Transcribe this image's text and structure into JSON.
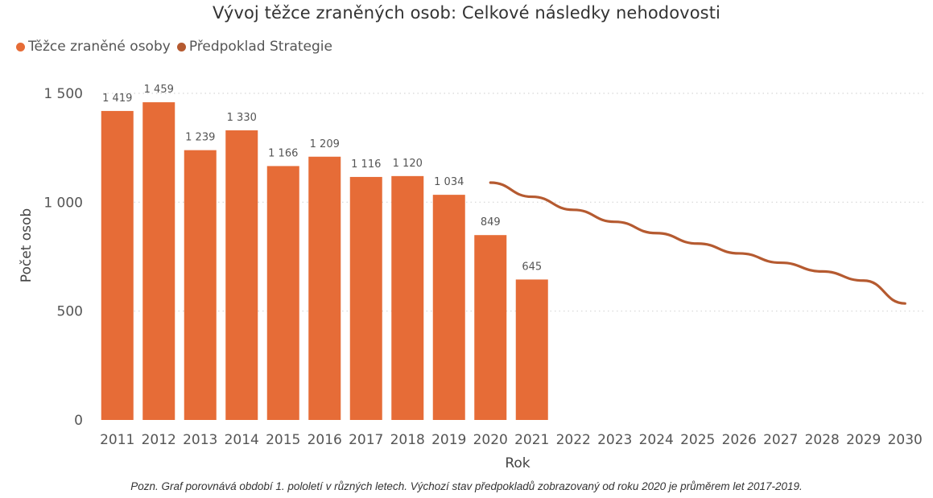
{
  "chart_data": {
    "type": "bar",
    "title": "Vývoj těžce zraněných osob: Celkové následky nehodovosti",
    "xlabel": "Rok",
    "ylabel": "Počet osob",
    "ylim": [
      0,
      1500
    ],
    "yticks": [
      0,
      500,
      1000,
      1500
    ],
    "ytick_labels": [
      "0",
      "500",
      "1 000",
      "1 500"
    ],
    "grid": true,
    "legend_position": "top-left",
    "categories": [
      "2011",
      "2012",
      "2013",
      "2014",
      "2015",
      "2016",
      "2017",
      "2018",
      "2019",
      "2020",
      "2021",
      "2022",
      "2023",
      "2024",
      "2025",
      "2026",
      "2027",
      "2028",
      "2029",
      "2030"
    ],
    "series": [
      {
        "name": "Těžce zraněné osoby",
        "type": "bar",
        "color": "#E66C37",
        "values": [
          1419,
          1459,
          1239,
          1330,
          1166,
          1209,
          1116,
          1120,
          1034,
          849,
          645,
          null,
          null,
          null,
          null,
          null,
          null,
          null,
          null,
          null
        ],
        "labels": [
          "1 419",
          "1 459",
          "1 239",
          "1 330",
          "1 166",
          "1 209",
          "1 116",
          "1 120",
          "1 034",
          "849",
          "645",
          "",
          "",
          "",
          "",
          "",
          "",
          "",
          "",
          ""
        ]
      },
      {
        "name": "Předpoklad Strategie",
        "type": "line",
        "color": "#B55A30",
        "values": [
          null,
          null,
          null,
          null,
          null,
          null,
          null,
          null,
          null,
          1090,
          1025,
          965,
          910,
          858,
          810,
          765,
          722,
          682,
          640,
          535
        ]
      }
    ]
  },
  "caption": "Pozn. Graf porovnává období 1. pololetí v různých letech. Výchozí stav předpokladů zobrazovaný od roku 2020 je průměrem let 2017-2019."
}
